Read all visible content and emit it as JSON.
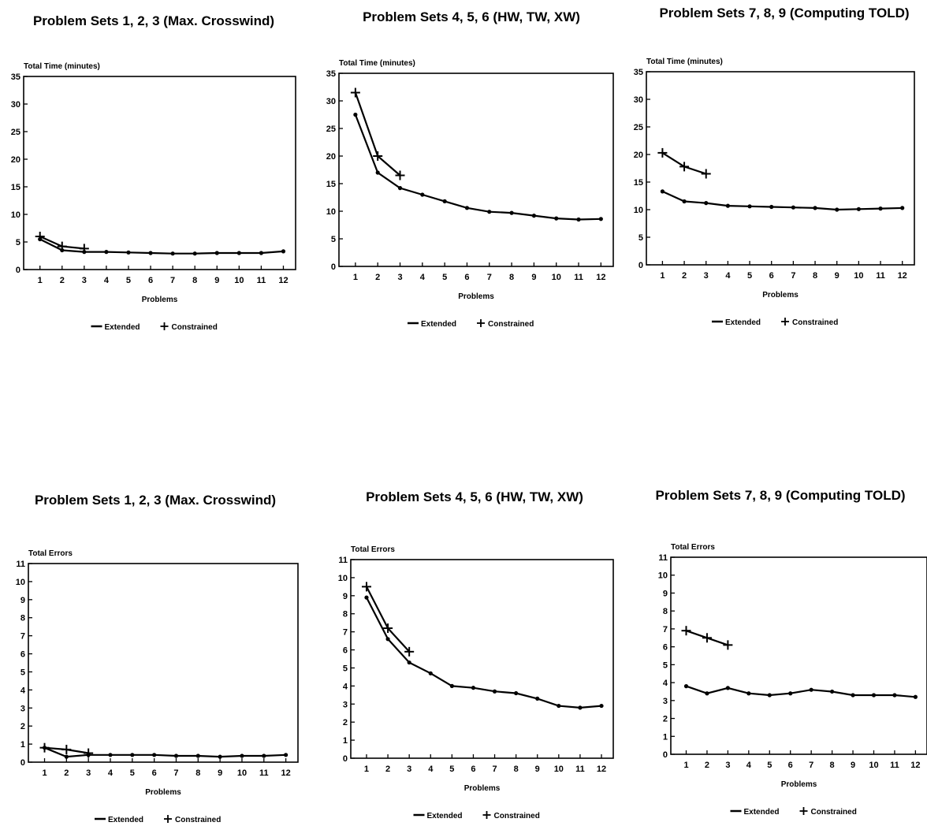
{
  "chart_data": [
    {
      "type": "line",
      "title": "Problem Sets 1, 2, 3 (Max. Crosswind)",
      "ylabel": "Total Time (minutes)",
      "xlabel": "Problems",
      "x": [
        1,
        2,
        3,
        4,
        5,
        6,
        7,
        8,
        9,
        10,
        11,
        12
      ],
      "ylim": [
        0,
        35
      ],
      "yticks": [
        0,
        5,
        10,
        15,
        20,
        25,
        30,
        35
      ],
      "legend": "bottom-center",
      "grid": false,
      "series": [
        {
          "name": "Extended",
          "marker": "dot",
          "values": [
            5.5,
            3.5,
            3.2,
            3.2,
            3.1,
            3.0,
            2.9,
            2.9,
            3.0,
            3.0,
            3.0,
            3.3
          ]
        },
        {
          "name": "Constrained",
          "marker": "plus",
          "values": [
            6.0,
            4.2,
            3.8,
            null,
            null,
            null,
            null,
            null,
            null,
            null,
            null,
            null
          ]
        }
      ]
    },
    {
      "type": "line",
      "title": "Problem Sets 4, 5, 6 (HW, TW, XW)",
      "ylabel": "Total Time (minutes)",
      "xlabel": "Problems",
      "x": [
        1,
        2,
        3,
        4,
        5,
        6,
        7,
        8,
        9,
        10,
        11,
        12
      ],
      "ylim": [
        0,
        35
      ],
      "yticks": [
        0,
        5,
        10,
        15,
        20,
        25,
        30,
        35
      ],
      "legend": "bottom-center",
      "grid": false,
      "series": [
        {
          "name": "Extended",
          "marker": "dot",
          "values": [
            27.5,
            17.0,
            14.2,
            13.0,
            11.8,
            10.6,
            9.9,
            9.7,
            9.2,
            8.7,
            8.5,
            8.6
          ]
        },
        {
          "name": "Constrained",
          "marker": "plus",
          "values": [
            31.5,
            20.0,
            16.5,
            null,
            null,
            null,
            null,
            null,
            null,
            null,
            null,
            null
          ]
        }
      ]
    },
    {
      "type": "line",
      "title": "Problem Sets 7, 8, 9 (Computing TOLD)",
      "ylabel": "Total Time (minutes)",
      "xlabel": "Problems",
      "x": [
        1,
        2,
        3,
        4,
        5,
        6,
        7,
        8,
        9,
        10,
        11,
        12
      ],
      "ylim": [
        0,
        35
      ],
      "yticks": [
        0,
        5,
        10,
        15,
        20,
        25,
        30,
        35
      ],
      "legend": "bottom-center",
      "grid": false,
      "series": [
        {
          "name": "Extended",
          "marker": "dot",
          "values": [
            13.3,
            11.5,
            11.2,
            10.7,
            10.6,
            10.5,
            10.4,
            10.3,
            10.0,
            10.1,
            10.2,
            10.3
          ]
        },
        {
          "name": "Constrained",
          "marker": "plus",
          "values": [
            20.3,
            17.8,
            16.5,
            null,
            null,
            null,
            null,
            null,
            null,
            null,
            null,
            null
          ]
        }
      ]
    },
    {
      "type": "line",
      "title": "Problem Sets 1, 2, 3 (Max. Crosswind)",
      "ylabel": "Total Errors",
      "xlabel": "Problems",
      "x": [
        1,
        2,
        3,
        4,
        5,
        6,
        7,
        8,
        9,
        10,
        11,
        12
      ],
      "ylim": [
        0,
        11
      ],
      "yticks": [
        0,
        1,
        2,
        3,
        4,
        5,
        6,
        7,
        8,
        9,
        10,
        11
      ],
      "legend": "bottom-center",
      "grid": false,
      "series": [
        {
          "name": "Extended",
          "marker": "dot",
          "values": [
            0.8,
            0.3,
            0.4,
            0.4,
            0.4,
            0.4,
            0.35,
            0.35,
            0.3,
            0.35,
            0.35,
            0.4
          ]
        },
        {
          "name": "Constrained",
          "marker": "plus",
          "values": [
            0.8,
            0.7,
            0.5,
            null,
            null,
            null,
            null,
            null,
            null,
            null,
            null,
            null
          ]
        }
      ]
    },
    {
      "type": "line",
      "title": "Problem Sets 4, 5, 6 (HW, TW, XW)",
      "ylabel": "Total Errors",
      "xlabel": "Problems",
      "x": [
        1,
        2,
        3,
        4,
        5,
        6,
        7,
        8,
        9,
        10,
        11,
        12
      ],
      "ylim": [
        0,
        11
      ],
      "yticks": [
        0,
        1,
        2,
        3,
        4,
        5,
        6,
        7,
        8,
        9,
        10,
        11
      ],
      "legend": "bottom-center",
      "grid": false,
      "series": [
        {
          "name": "Extended",
          "marker": "dot",
          "values": [
            8.9,
            6.6,
            5.3,
            4.7,
            4.0,
            3.9,
            3.7,
            3.6,
            3.3,
            2.9,
            2.8,
            2.9
          ]
        },
        {
          "name": "Constrained",
          "marker": "plus",
          "values": [
            9.5,
            7.2,
            5.9,
            null,
            null,
            null,
            null,
            null,
            null,
            null,
            null,
            null
          ]
        }
      ]
    },
    {
      "type": "line",
      "title": "Problem Sets 7, 8, 9 (Computing TOLD)",
      "ylabel": "Total Errors",
      "xlabel": "Problems",
      "x": [
        1,
        2,
        3,
        4,
        5,
        6,
        7,
        8,
        9,
        10,
        11,
        12
      ],
      "ylim": [
        0,
        11
      ],
      "yticks": [
        0,
        1,
        2,
        3,
        4,
        5,
        6,
        7,
        8,
        9,
        10,
        11
      ],
      "legend": "bottom-center",
      "grid": false,
      "series": [
        {
          "name": "Extended",
          "marker": "dot",
          "values": [
            3.8,
            3.4,
            3.7,
            3.4,
            3.3,
            3.4,
            3.6,
            3.5,
            3.3,
            3.3,
            3.3,
            3.2
          ]
        },
        {
          "name": "Constrained",
          "marker": "plus",
          "values": [
            6.9,
            6.5,
            6.1,
            null,
            null,
            null,
            null,
            null,
            null,
            null,
            null,
            null
          ]
        }
      ]
    }
  ]
}
